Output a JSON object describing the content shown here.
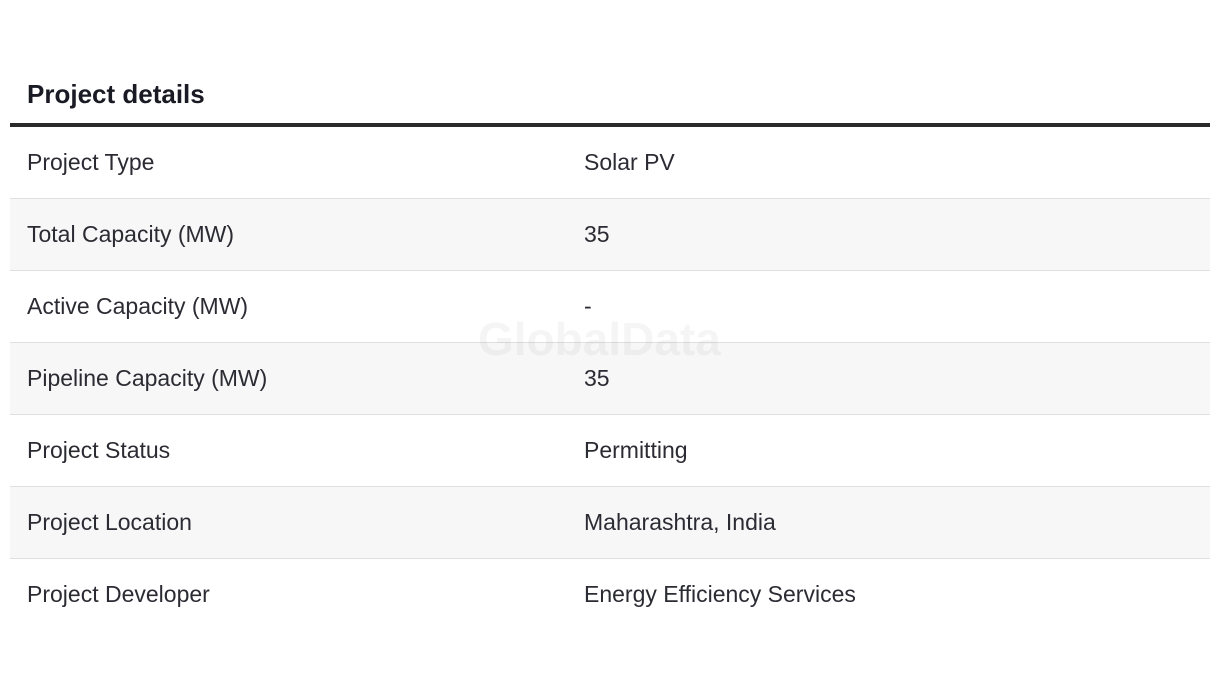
{
  "section": {
    "title": "Project details"
  },
  "rows": [
    {
      "label": "Project Type",
      "value": "Solar PV"
    },
    {
      "label": "Total Capacity (MW)",
      "value": "35"
    },
    {
      "label": "Active Capacity (MW)",
      "value": "-"
    },
    {
      "label": "Pipeline Capacity (MW)",
      "value": "35"
    },
    {
      "label": "Project Status",
      "value": "Permitting"
    },
    {
      "label": "Project Location",
      "value": "Maharashtra, India"
    },
    {
      "label": "Project Developer",
      "value": "Energy Efficiency Services"
    }
  ],
  "watermark": "GlobalData"
}
